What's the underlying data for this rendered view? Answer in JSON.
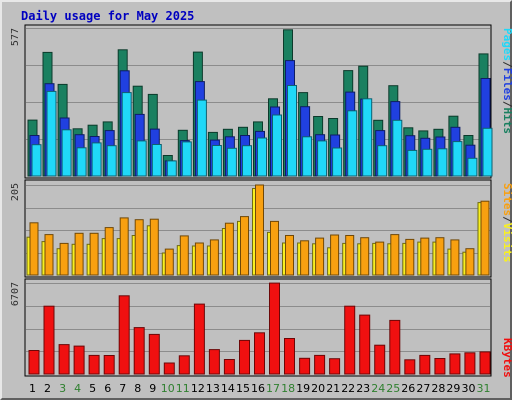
{
  "title": "Daily usage for May 2025",
  "colors": {
    "hits": "#1a8060",
    "files": "#2040e0",
    "pages": "#20d8f8",
    "visits": "#f8f020",
    "sites": "#f8a010",
    "kbytes": "#f01010",
    "weekend_label": "#308030",
    "weekday_label": "#000000"
  },
  "chart_data": [
    {
      "type": "bar",
      "panel": "top",
      "max_label": "577",
      "ylim": [
        0,
        577
      ],
      "grid": true,
      "right_label": [
        {
          "text": "Pages",
          "color": "#20d8f8"
        },
        {
          "text": "/",
          "color": "#303030"
        },
        {
          "text": "Files",
          "color": "#2040e0"
        },
        {
          "text": "/",
          "color": "#303030"
        },
        {
          "text": "Hits",
          "color": "#1a8060"
        }
      ],
      "categories": [
        "1",
        "2",
        "3",
        "4",
        "5",
        "6",
        "7",
        "8",
        "9",
        "10",
        "11",
        "12",
        "13",
        "14",
        "15",
        "16",
        "17",
        "18",
        "19",
        "20",
        "21",
        "22",
        "23",
        "24",
        "25",
        "26",
        "27",
        "28",
        "29",
        "30",
        "31"
      ],
      "series": [
        {
          "name": "Hits",
          "values": [
            218,
            482,
            357,
            184,
            198,
            211,
            492,
            350,
            318,
            80,
            178,
            483,
            170,
            182,
            190,
            211,
            301,
            570,
            325,
            232,
            224,
            411,
            428,
            217,
            352,
            188,
            176,
            182,
            233,
            158,
            476
          ]
        },
        {
          "name": "Files",
          "values": [
            158,
            360,
            226,
            161,
            154,
            177,
            410,
            240,
            183,
            59,
            138,
            368,
            140,
            153,
            158,
            174,
            269,
            450,
            270,
            161,
            160,
            327,
            300,
            177,
            290,
            157,
            147,
            152,
            190,
            120,
            380
          ]
        },
        {
          "name": "Pages",
          "values": [
            122,
            330,
            180,
            110,
            129,
            118,
            325,
            137,
            123,
            59,
            133,
            296,
            119,
            108,
            118,
            148,
            238,
            353,
            153,
            137,
            109,
            254,
            301,
            118,
            217,
            100,
            104,
            106,
            134,
            69,
            186
          ]
        }
      ]
    },
    {
      "type": "bar",
      "panel": "middle",
      "max_label": "205",
      "ylim": [
        0,
        205
      ],
      "grid": true,
      "right_label": [
        {
          "text": "Sites",
          "color": "#f8a010"
        },
        {
          "text": "/",
          "color": "#303030"
        },
        {
          "text": "Visits",
          "color": "#f8f020"
        }
      ],
      "categories": [
        "1",
        "2",
        "3",
        "4",
        "5",
        "6",
        "7",
        "8",
        "9",
        "10",
        "11",
        "12",
        "13",
        "14",
        "15",
        "16",
        "17",
        "18",
        "19",
        "20",
        "21",
        "22",
        "23",
        "24",
        "25",
        "26",
        "27",
        "28",
        "29",
        "30",
        "31"
      ],
      "series": [
        {
          "name": "Visits",
          "values": [
            86,
            76,
            60,
            70,
            70,
            83,
            83,
            90,
            112,
            50,
            67,
            66,
            66,
            106,
            122,
            197,
            97,
            73,
            73,
            71,
            62,
            72,
            71,
            72,
            71,
            72,
            75,
            75,
            59,
            52,
            165
          ]
        },
        {
          "name": "Sites",
          "values": [
            119,
            92,
            72,
            95,
            95,
            108,
            130,
            126,
            127,
            59,
            89,
            73,
            80,
            118,
            133,
            205,
            122,
            90,
            78,
            84,
            91,
            90,
            85,
            75,
            92,
            81,
            84,
            85,
            80,
            60,
            168
          ]
        }
      ]
    },
    {
      "type": "bar",
      "panel": "bottom",
      "max_label": "6707",
      "ylim": [
        0,
        6707
      ],
      "grid": true,
      "right_label": [
        {
          "text": "KBytes",
          "color": "#f01010"
        }
      ],
      "categories": [
        "1",
        "2",
        "3",
        "4",
        "5",
        "6",
        "7",
        "8",
        "9",
        "10",
        "11",
        "12",
        "13",
        "14",
        "15",
        "16",
        "17",
        "18",
        "19",
        "20",
        "21",
        "22",
        "23",
        "24",
        "25",
        "26",
        "27",
        "28",
        "29",
        "30",
        "31"
      ],
      "series": [
        {
          "name": "KBytes",
          "values": [
            1730,
            5000,
            2170,
            2060,
            1370,
            1360,
            5760,
            3420,
            2920,
            810,
            1340,
            5150,
            1800,
            1070,
            2480,
            3040,
            6700,
            2620,
            1160,
            1370,
            1130,
            5000,
            4340,
            2120,
            3950,
            1050,
            1370,
            1140,
            1480,
            1560,
            1630
          ]
        }
      ]
    }
  ]
}
